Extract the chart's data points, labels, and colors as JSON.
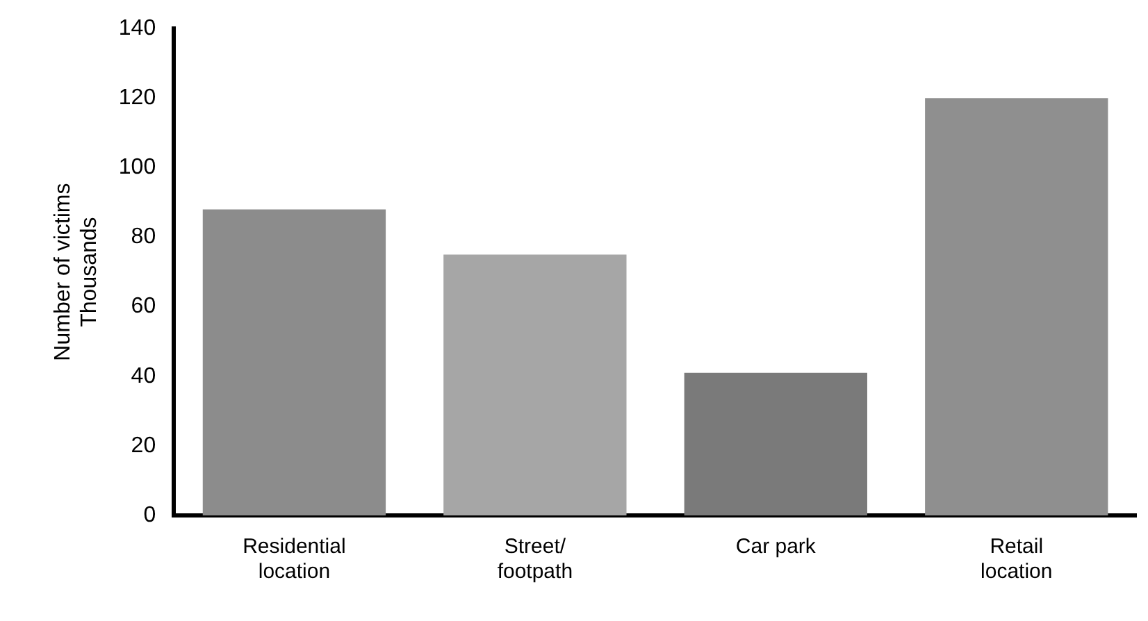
{
  "chart_data": {
    "type": "bar",
    "ylabel": "Number of victims\nThousands",
    "categories": [
      "Residential\nlocation",
      "Street/\nfootpath",
      "Car park",
      "Retail\nlocation"
    ],
    "values": [
      88,
      75,
      41,
      120
    ],
    "colors": [
      "#8c8c8c",
      "#a6a6a6",
      "#7a7a7a",
      "#8f8f8f"
    ],
    "ylim": [
      0,
      140
    ],
    "yticks": [
      0,
      20,
      40,
      60,
      80,
      100,
      120,
      140
    ],
    "grid": false,
    "legend": false
  }
}
